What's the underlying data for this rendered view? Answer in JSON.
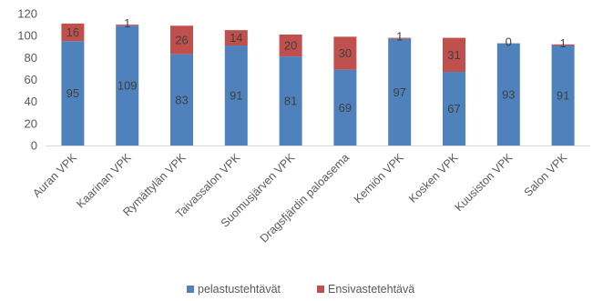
{
  "chart_data": {
    "type": "bar",
    "stacked": true,
    "categories": [
      "Auran VPK",
      "Kaarinan VPK",
      "Rymättylän VPK",
      "Taivassalon VPK",
      "Suomusjärven VPK",
      "Dragsfjärdin paloasema",
      "Kemiön VPK",
      "Kosken VPK",
      "Kuusiston VPK",
      "Salon VPK"
    ],
    "series": [
      {
        "name": "pelastustehtävät",
        "color": "#4f81bd",
        "values": [
          95,
          109,
          83,
          91,
          81,
          69,
          97,
          67,
          93,
          91
        ]
      },
      {
        "name": "Ensivastetehtävä",
        "color": "#c0504d",
        "values": [
          16,
          1,
          26,
          14,
          20,
          30,
          1,
          31,
          0,
          1
        ]
      }
    ],
    "ylim": [
      0,
      120
    ],
    "yticks": [
      0,
      20,
      40,
      60,
      80,
      100,
      120
    ],
    "xlabel": "",
    "ylabel": "",
    "title": "",
    "grid": false,
    "legend_position": "bottom"
  }
}
